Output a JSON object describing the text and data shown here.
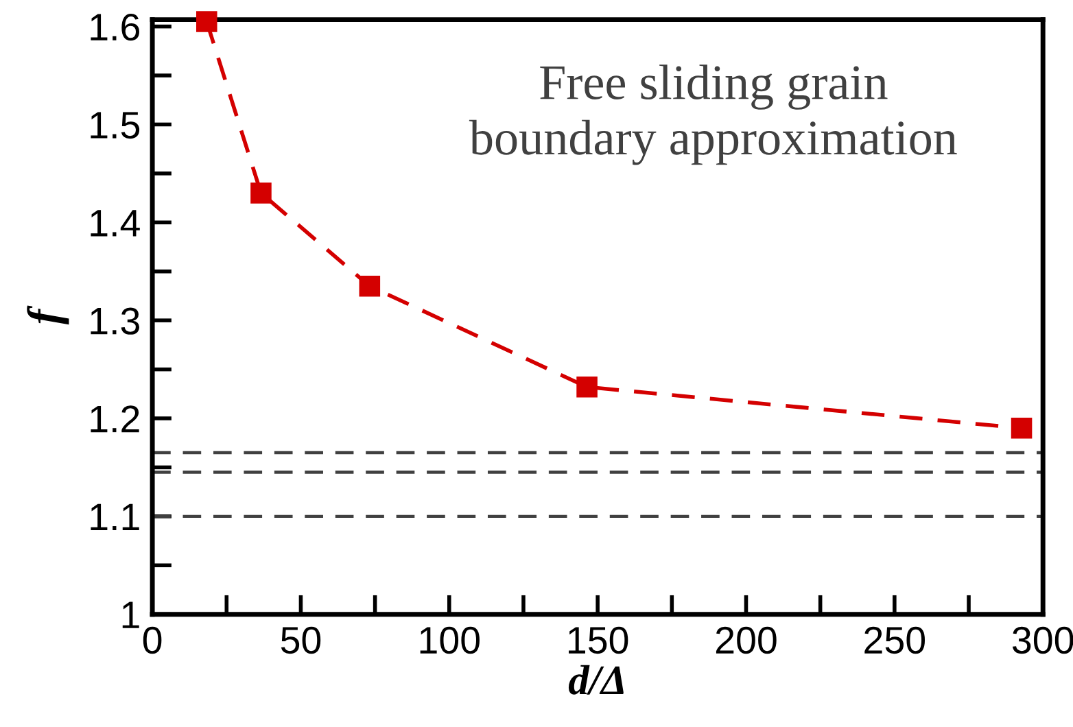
{
  "chart_data": {
    "type": "line",
    "xlabel": "d/Δ",
    "ylabel": "f",
    "x": [
      18.3,
      36.6,
      73.2,
      146.4,
      292.8
    ],
    "series": [
      {
        "color": "#d40000",
        "values": [
          1.605,
          1.43,
          1.335,
          1.232,
          1.19
        ],
        "marker": "square",
        "line_style": "dashed"
      }
    ],
    "xlim": [
      0,
      300
    ],
    "ylim": [
      1,
      1.607
    ],
    "xticks": [
      0,
      {
        "value": 25,
        "label": null
      },
      50,
      {
        "value": 75,
        "label": null
      },
      100,
      {
        "value": 125,
        "label": null
      },
      150,
      {
        "value": 175,
        "label": null
      },
      200,
      {
        "value": 225,
        "label": null
      },
      250,
      {
        "value": 275,
        "label": null
      },
      300
    ],
    "yticks": [
      1,
      {
        "value": 1.05,
        "label": null
      },
      1.1,
      {
        "value": 1.15,
        "label": null
      },
      1.2,
      {
        "value": 1.25,
        "label": null
      },
      1.3,
      {
        "value": 1.35,
        "label": null
      },
      1.4,
      {
        "value": 1.45,
        "label": null
      },
      1.5,
      {
        "value": 1.55,
        "label": null
      },
      1.6
    ],
    "ref_lines": [
      {
        "axis": "y",
        "value": 1.165,
        "color": "#404040",
        "line_style": "dashed"
      },
      {
        "axis": "y",
        "value": 1.145,
        "color": "#404040",
        "line_style": "dashed"
      },
      {
        "axis": "y",
        "value": 1.1,
        "color": "#404040",
        "line_style": "dashed"
      }
    ],
    "annotations": [
      "Free sliding grain\nboundary approximation"
    ],
    "grid": false,
    "legend": false
  }
}
